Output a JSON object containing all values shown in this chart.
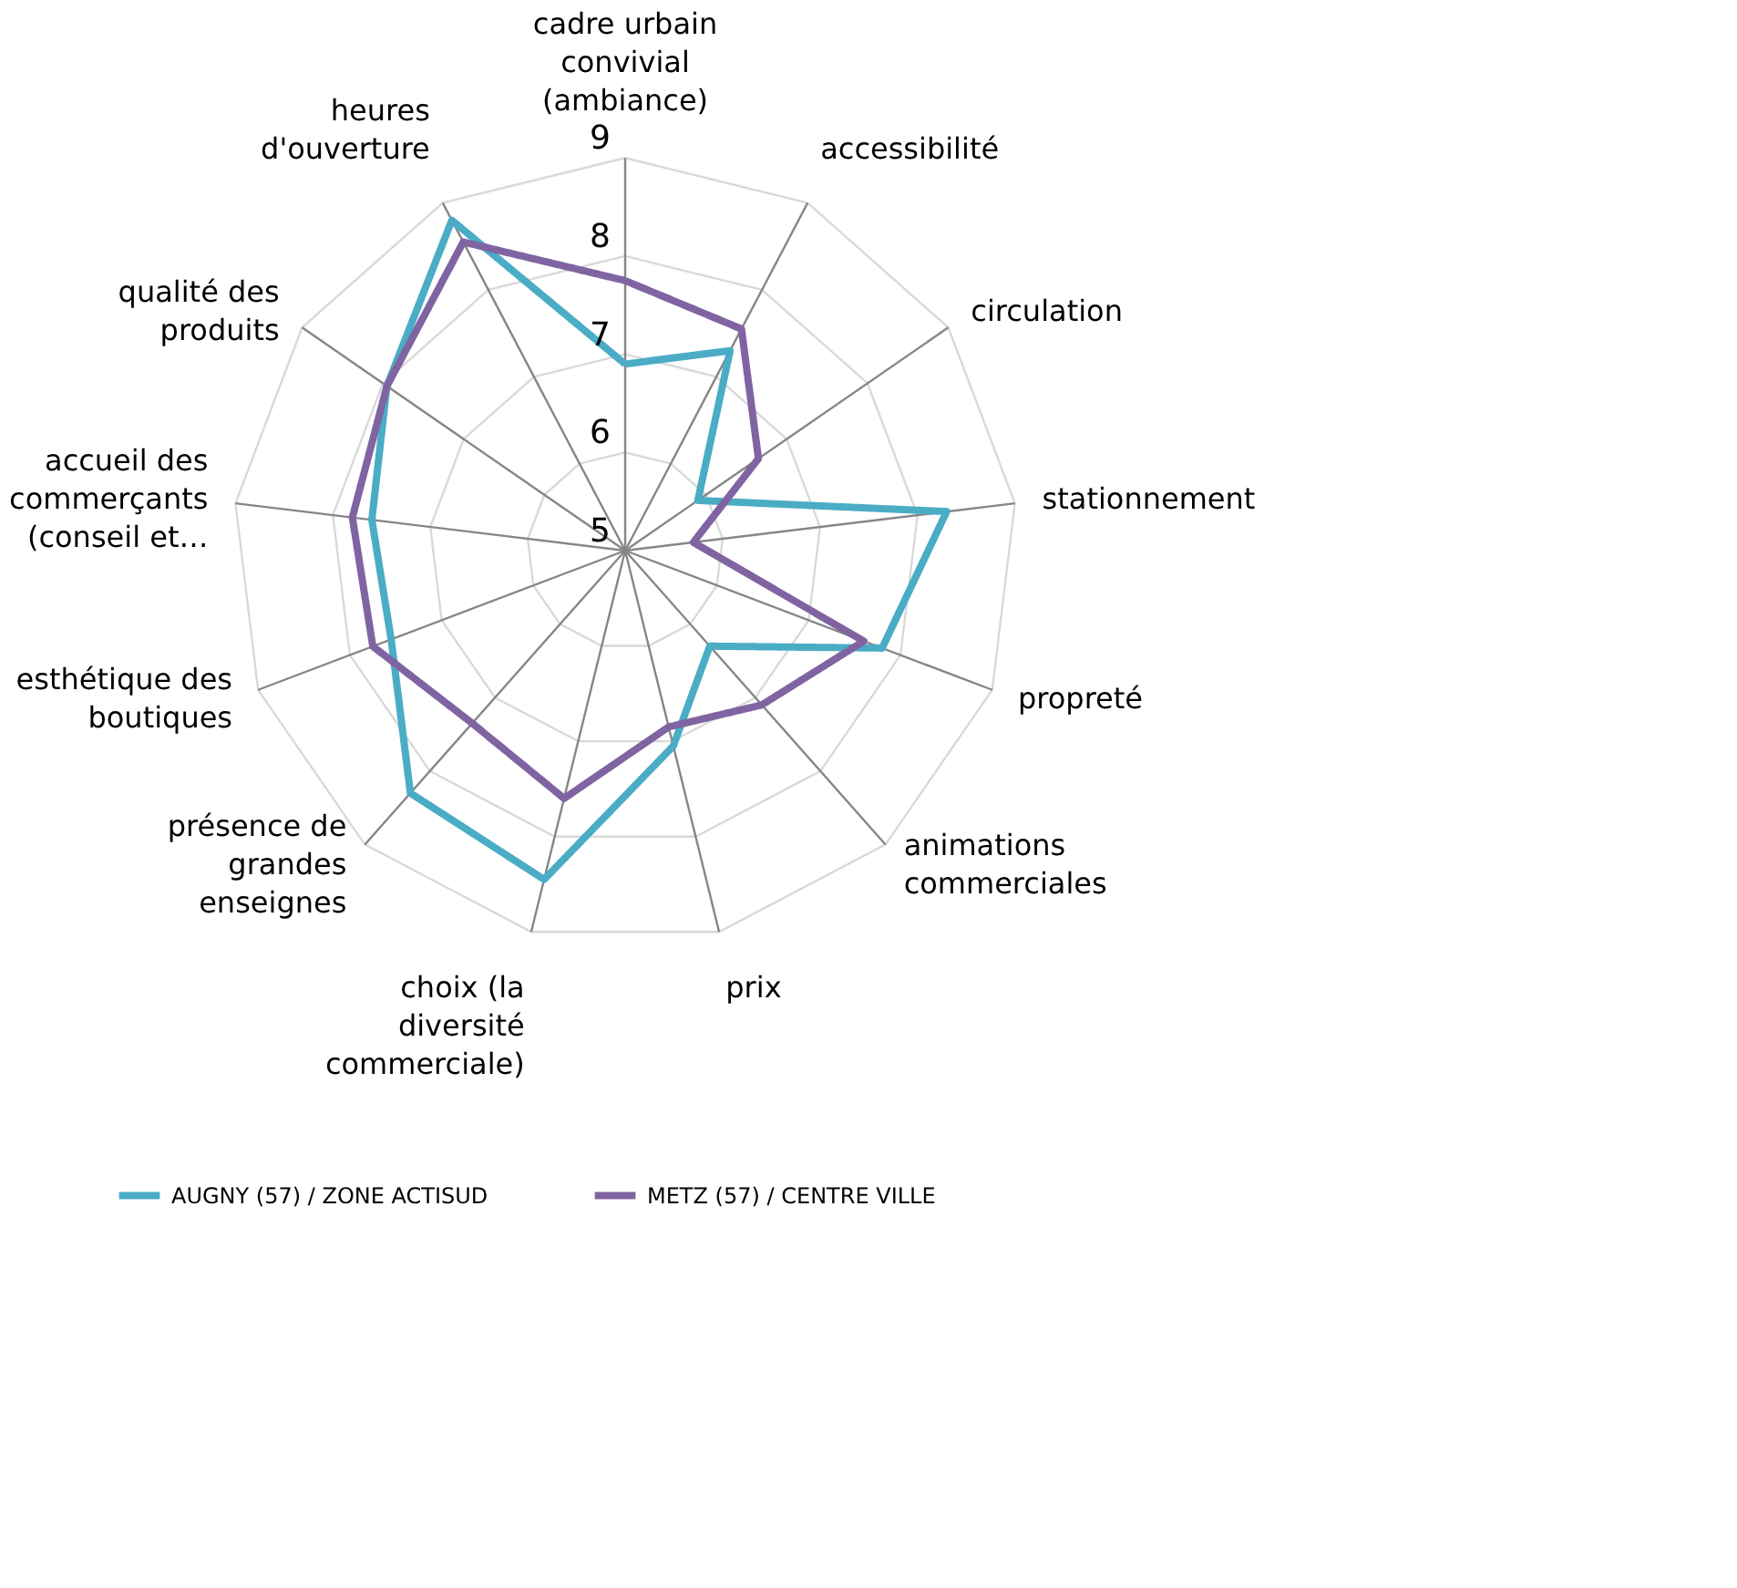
{
  "chart_data": {
    "type": "radar",
    "categories": [
      "cadre urbain convivial (ambiance)",
      "accessibilité",
      "circulation",
      "stationnement",
      "propreté",
      "animations commerciales",
      "prix",
      "choix (la diversité commerciale)",
      "présence de grandes enseignes",
      "esthétique des boutiques",
      "accueil des commerçants (conseil et…",
      "qualité des produits",
      "heures d'ouverture"
    ],
    "series": [
      {
        "name": "AUGNY (57) / ZONE ACTISUD",
        "color": "#4bacc6",
        "values": [
          6.9,
          7.3,
          5.9,
          8.3,
          7.8,
          6.3,
          7.05,
          8.45,
          8.3,
          7.55,
          7.6,
          7.95,
          8.8
        ]
      },
      {
        "name": "METZ (57) / CENTRE VILLE",
        "color": "#8064a2",
        "values": [
          7.75,
          7.55,
          6.65,
          5.7,
          7.6,
          7.1,
          6.85,
          7.6,
          7.35,
          7.75,
          7.8,
          7.95,
          8.55
        ]
      }
    ],
    "ylim": [
      5,
      9
    ],
    "yticks": [
      5,
      6,
      7,
      8,
      9
    ],
    "grid": true,
    "legend": "bottom",
    "marker": "none",
    "line_style": "solid"
  }
}
